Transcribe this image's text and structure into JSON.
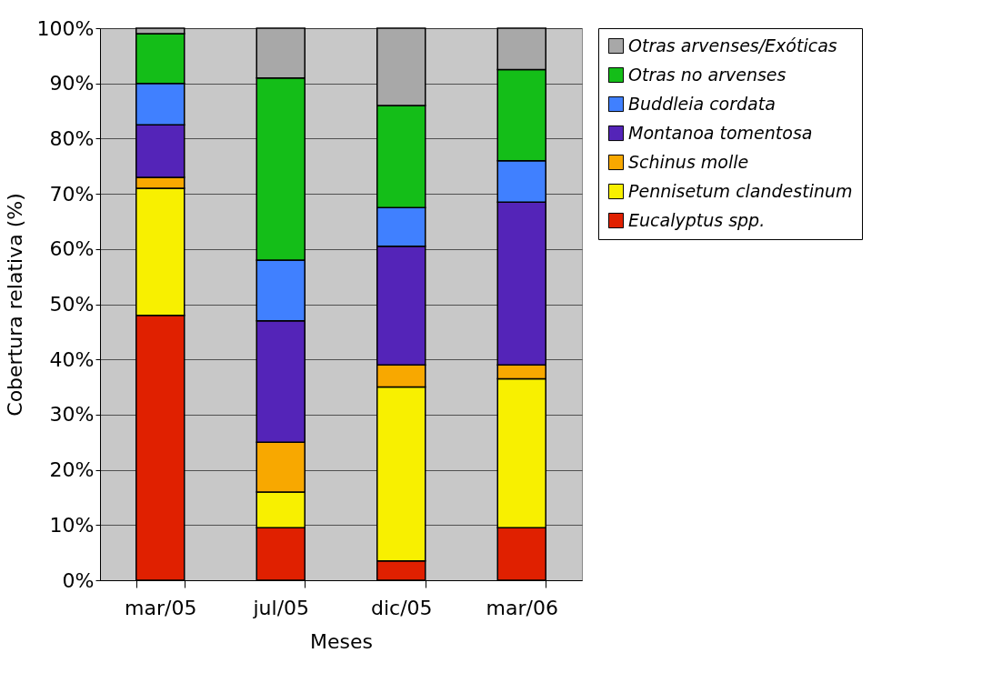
{
  "chart_data": {
    "type": "bar",
    "stacked": true,
    "xlabel": "Meses",
    "ylabel": "Cobertura relativa (%)",
    "categories": [
      "mar/05",
      "jul/05",
      "dic/05",
      "mar/06"
    ],
    "series": [
      {
        "name": "Eucalyptus spp.",
        "color": "#e02000",
        "values": [
          48,
          9.5,
          3.5,
          9.5
        ]
      },
      {
        "name": "Pennisetum clandestinum",
        "color": "#f8f000",
        "values": [
          23,
          6.5,
          31.5,
          27
        ]
      },
      {
        "name": "Schinus molle",
        "color": "#f8a800",
        "values": [
          2,
          9,
          4,
          2.5
        ]
      },
      {
        "name": "Montanoa tomentosa",
        "color": "#5424b8",
        "values": [
          9.5,
          22,
          21.5,
          29.5
        ]
      },
      {
        "name": "Buddleia cordata",
        "color": "#4080ff",
        "values": [
          7.5,
          11,
          7,
          7.5
        ]
      },
      {
        "name": "Otras no arvenses",
        "color": "#14be18",
        "values": [
          9,
          33,
          18.5,
          16.5
        ]
      },
      {
        "name": "Otras arvenses/Exóticas",
        "color": "#a8a8a8",
        "values": [
          1,
          9,
          14,
          7.5
        ]
      }
    ],
    "ylim": [
      0,
      100
    ],
    "yticks": [
      {
        "value": 0,
        "label": "0%"
      },
      {
        "value": 10,
        "label": "10%"
      },
      {
        "value": 20,
        "label": "20%"
      },
      {
        "value": 30,
        "label": "30%"
      },
      {
        "value": 40,
        "label": "40%"
      },
      {
        "value": 50,
        "label": "50%"
      },
      {
        "value": 60,
        "label": "60%"
      },
      {
        "value": 70,
        "label": "70%"
      },
      {
        "value": 80,
        "label": "80%"
      },
      {
        "value": 90,
        "label": "90%"
      },
      {
        "value": 100,
        "label": "100%"
      }
    ],
    "grid": "y",
    "legend": "right"
  }
}
